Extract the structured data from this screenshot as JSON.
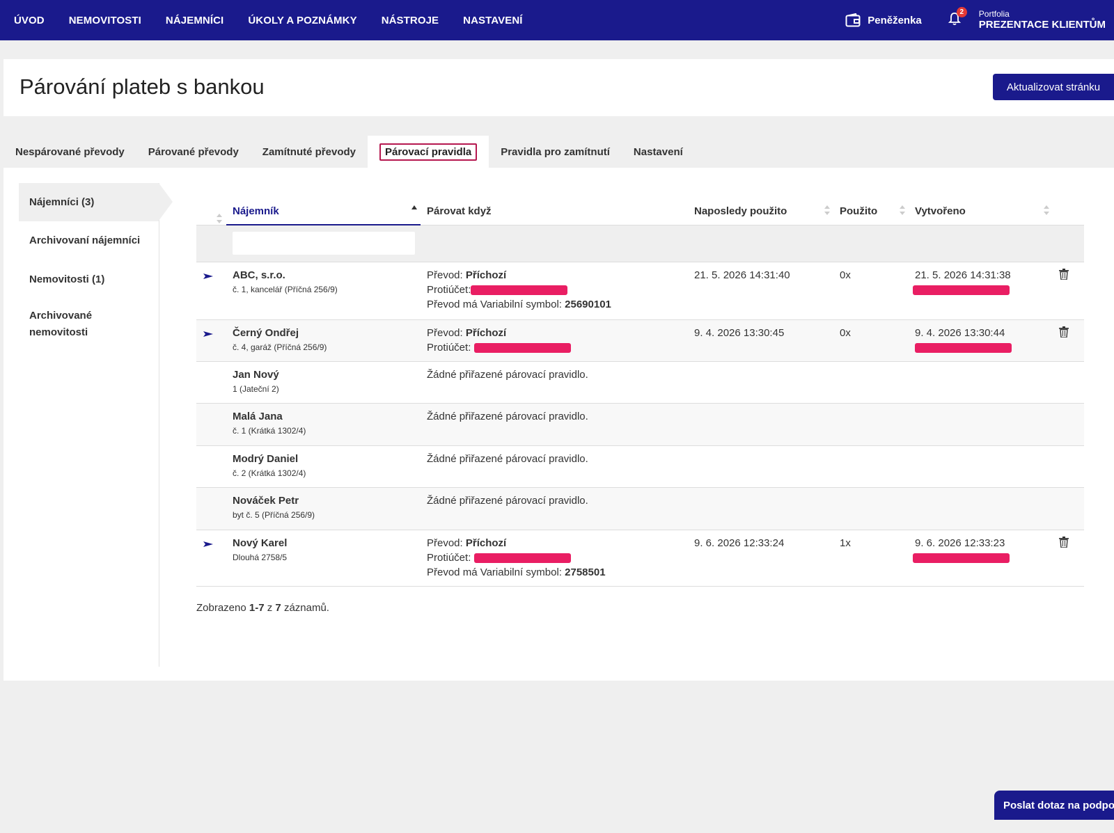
{
  "nav": {
    "items": [
      "ÚVOD",
      "NEMOVITOSTI",
      "NÁJEMNÍCI",
      "ÚKOLY A POZNÁMKY",
      "NÁSTROJE",
      "NASTAVENÍ"
    ],
    "wallet_label": "Peněženka",
    "notifications_count": "2",
    "portfolio_label": "Portfolia",
    "portfolio_name": "PREZENTACE KLIENTŮM"
  },
  "header": {
    "title": "Párování plateb s bankou",
    "refresh_label": "Aktualizovat stránku"
  },
  "tabs": [
    "Nespárované převody",
    "Párované převody",
    "Zamítnuté převody",
    "Párovací pravidla",
    "Pravidla pro zamítnutí",
    "Nastavení"
  ],
  "sidebar": {
    "items": [
      "Nájemníci (3)",
      "Archivovaní nájemníci",
      "Nemovitosti (1)",
      "Archivované nemovitosti"
    ]
  },
  "table": {
    "columns": {
      "tenant": "Nájemník",
      "match_when": "Párovat když",
      "last_used": "Naposledy použito",
      "used": "Použito",
      "created": "Vytvořeno"
    },
    "labels": {
      "transfer": "Převod:",
      "counter_account": "Protiúčet:",
      "vs": "Převod má Variabilní symbol:",
      "no_rule": "Žádné přiřazené párovací pravidlo."
    },
    "rows": [
      {
        "name": "ABC, s.r.o.",
        "sub": "č. 1, kancelář (Příčná 256/9)",
        "direction": "Příchozí",
        "vs": "25690101",
        "last_used": "21. 5. 2026 14:31:40",
        "used": "0x",
        "created": "21. 5. 2026 14:31:38"
      },
      {
        "name": "Černý Ondřej",
        "sub": "č. 4, garáž (Příčná 256/9)",
        "direction": "Příchozí",
        "last_used": "9. 4. 2026 13:30:45",
        "used": "0x",
        "created": "9. 4. 2026 13:30:44"
      },
      {
        "name": "Jan Nový",
        "sub": "1 (Jateční 2)"
      },
      {
        "name": "Malá Jana",
        "sub": "č. 1 (Krátká 1302/4)"
      },
      {
        "name": "Modrý Daniel",
        "sub": "č. 2 (Krátká 1302/4)"
      },
      {
        "name": "Nováček Petr",
        "sub": "byt č. 5 (Příčná 256/9)"
      },
      {
        "name": "Nový Karel",
        "sub": "Dlouhá 2758/5",
        "direction": "Příchozí",
        "vs": "2758501",
        "last_used": "9. 6. 2026 12:33:24",
        "used": "1x",
        "created": "9. 6. 2026 12:33:23"
      }
    ]
  },
  "footer": {
    "prefix": "Zobrazeno",
    "range": "1-7",
    "mid": "z",
    "total": "7",
    "suffix": "záznamů."
  },
  "chat_label": "Poslat dotaz na podporu",
  "colors": {
    "primary": "#1a1a8c",
    "redaction": "#e91e63",
    "active_tab_border": "#b5174f"
  }
}
